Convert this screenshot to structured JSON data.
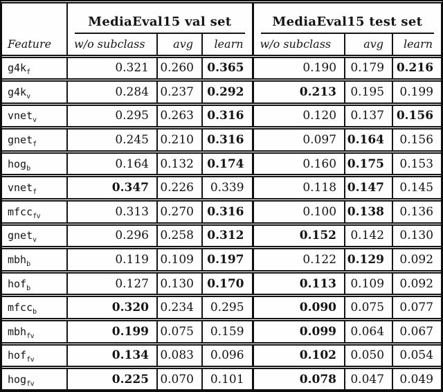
{
  "page": {
    "background": "#fefefe",
    "ink": "#141414"
  },
  "table": {
    "feature_header": "Feature",
    "groups": [
      {
        "label": "MediaEval15 val set"
      },
      {
        "label": "MediaEval15 test set"
      }
    ],
    "sub_headers": [
      "w/o subclass",
      "avg",
      "learn"
    ],
    "rows": [
      {
        "feature": "g4k",
        "sub": "f",
        "values": [
          "0.321",
          "0.260",
          "0.365",
          "0.190",
          "0.179",
          "0.216"
        ],
        "bold": [
          false,
          false,
          true,
          false,
          false,
          true
        ]
      },
      {
        "feature": "g4k",
        "sub": "v",
        "values": [
          "0.284",
          "0.237",
          "0.292",
          "0.213",
          "0.195",
          "0.199"
        ],
        "bold": [
          false,
          false,
          true,
          true,
          false,
          false
        ]
      },
      {
        "feature": "vnet",
        "sub": "v",
        "values": [
          "0.295",
          "0.263",
          "0.316",
          "0.120",
          "0.137",
          "0.156"
        ],
        "bold": [
          false,
          false,
          true,
          false,
          false,
          true
        ]
      },
      {
        "feature": "gnet",
        "sub": "f",
        "values": [
          "0.245",
          "0.210",
          "0.316",
          "0.097",
          "0.164",
          "0.156"
        ],
        "bold": [
          false,
          false,
          true,
          false,
          true,
          false
        ]
      },
      {
        "feature": "hog",
        "sub": "b",
        "values": [
          "0.164",
          "0.132",
          "0.174",
          "0.160",
          "0.175",
          "0.153"
        ],
        "bold": [
          false,
          false,
          true,
          false,
          true,
          false
        ]
      },
      {
        "feature": "vnet",
        "sub": "f",
        "values": [
          "0.347",
          "0.226",
          "0.339",
          "0.118",
          "0.147",
          "0.145"
        ],
        "bold": [
          true,
          false,
          false,
          false,
          true,
          false
        ]
      },
      {
        "feature": "mfcc",
        "sub": "fv",
        "values": [
          "0.313",
          "0.270",
          "0.316",
          "0.100",
          "0.138",
          "0.136"
        ],
        "bold": [
          false,
          false,
          true,
          false,
          true,
          false
        ]
      },
      {
        "feature": "gnet",
        "sub": "v",
        "values": [
          "0.296",
          "0.258",
          "0.312",
          "0.152",
          "0.142",
          "0.130"
        ],
        "bold": [
          false,
          false,
          true,
          true,
          false,
          false
        ]
      },
      {
        "feature": "mbh",
        "sub": "b",
        "values": [
          "0.119",
          "0.109",
          "0.197",
          "0.122",
          "0.129",
          "0.092"
        ],
        "bold": [
          false,
          false,
          true,
          false,
          true,
          false
        ]
      },
      {
        "feature": "hof",
        "sub": "b",
        "values": [
          "0.127",
          "0.130",
          "0.170",
          "0.113",
          "0.109",
          "0.092"
        ],
        "bold": [
          false,
          false,
          true,
          true,
          false,
          false
        ]
      },
      {
        "feature": "mfcc",
        "sub": "b",
        "values": [
          "0.320",
          "0.234",
          "0.295",
          "0.090",
          "0.075",
          "0.077"
        ],
        "bold": [
          true,
          false,
          false,
          true,
          false,
          false
        ]
      },
      {
        "feature": "mbh",
        "sub": "fv",
        "values": [
          "0.199",
          "0.075",
          "0.159",
          "0.099",
          "0.064",
          "0.067"
        ],
        "bold": [
          true,
          false,
          false,
          true,
          false,
          false
        ]
      },
      {
        "feature": "hof",
        "sub": "fv",
        "values": [
          "0.134",
          "0.083",
          "0.096",
          "0.102",
          "0.050",
          "0.054"
        ],
        "bold": [
          true,
          false,
          false,
          true,
          false,
          false
        ]
      },
      {
        "feature": "hog",
        "sub": "fv",
        "values": [
          "0.225",
          "0.070",
          "0.101",
          "0.078",
          "0.047",
          "0.049"
        ],
        "bold": [
          true,
          false,
          false,
          true,
          false,
          false
        ]
      }
    ]
  }
}
